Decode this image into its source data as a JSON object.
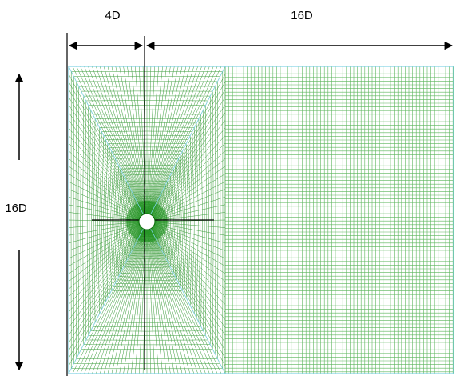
{
  "labels": {
    "inlet_width": "4D",
    "outlet_length": "16D",
    "domain_height": "16D"
  },
  "colors": {
    "mesh_line": "#3a9c3a",
    "mesh_dense": "#0f8a0f",
    "mesh_light": "#5ab55a",
    "boundary": "#7fd3e6",
    "axis": "#000000",
    "cylinder": "#ffffff"
  }
}
